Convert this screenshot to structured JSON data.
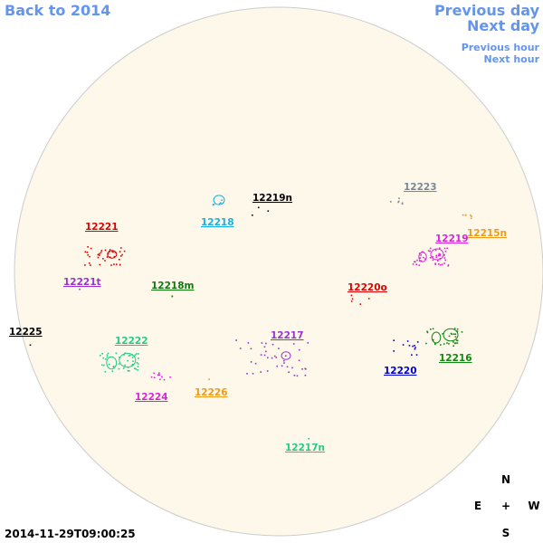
{
  "nav": {
    "back": "Back to 2014",
    "previous_day": "Previous day",
    "next_day": "Next day",
    "previous_hour": "Previous hour",
    "next_hour": "Next hour"
  },
  "regions": [
    {
      "label": "12219n",
      "color": "#000000"
    },
    {
      "label": "12218",
      "color": "#1ab0e0"
    },
    {
      "label": "12223",
      "color": "#778899"
    },
    {
      "label": "12215n",
      "color": "#ee9a1a"
    },
    {
      "label": "12221",
      "color": "#dd0000"
    },
    {
      "label": "12219",
      "color": "#dd22dd"
    },
    {
      "label": "12221t",
      "color": "#9933cc"
    },
    {
      "label": "12218m",
      "color": "#117711"
    },
    {
      "label": "12220o",
      "color": "#dd0000"
    },
    {
      "label": "12225",
      "color": "#000000"
    },
    {
      "label": "12217",
      "color": "#9933cc"
    },
    {
      "label": "12222",
      "color": "#22cc88"
    },
    {
      "label": "12220",
      "color": "#0000cc"
    },
    {
      "label": "12216",
      "color": "#118811"
    },
    {
      "label": "12224",
      "color": "#dd22dd"
    },
    {
      "label": "12226",
      "color": "#ee9a1a"
    },
    {
      "label": "12217n",
      "color": "#22cc88"
    }
  ],
  "compass": {
    "north": "N",
    "east": "E",
    "center": "+",
    "west": "W",
    "south": "S"
  },
  "timestamp": "2014-11-29T09:00:25"
}
